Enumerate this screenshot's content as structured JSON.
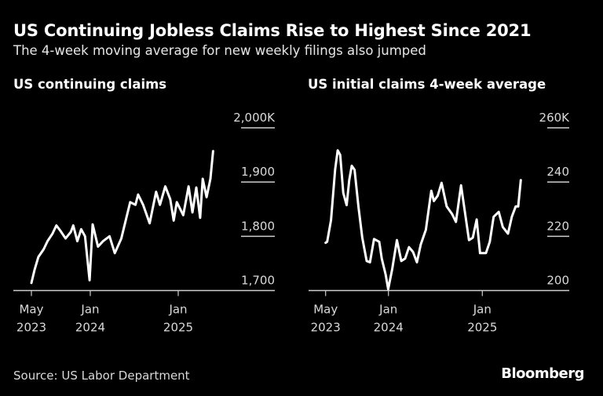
{
  "header": {
    "title": "US Continuing Jobless Claims Rise to Highest Since 2021",
    "subtitle": "The 4-week moving average for new weekly filings also jumped"
  },
  "footer": {
    "source": "Source: US Labor Department",
    "brand": "Bloomberg"
  },
  "colors": {
    "background": "#000000",
    "line": "#ffffff",
    "text": "#d9d9d9"
  },
  "chart_data": [
    {
      "type": "line",
      "title": "US continuing claims",
      "unit": "K",
      "ylim": [
        1700,
        2000
      ],
      "yticks": [
        {
          "v": 2000,
          "label": "2,000K"
        },
        {
          "v": 1900,
          "label": "1,900"
        },
        {
          "v": 1800,
          "label": "1,800"
        },
        {
          "v": 1700,
          "label": "1,700"
        }
      ],
      "xticks": [
        {
          "date": "2023-05-01",
          "label": [
            "May",
            "2023"
          ]
        },
        {
          "date": "2024-01-01",
          "label": [
            "Jan",
            "2024"
          ]
        },
        {
          "date": "2025-01-01",
          "label": [
            "Jan",
            "2025"
          ]
        }
      ],
      "xlim": [
        "2023-04-01",
        "2025-09-15"
      ],
      "grid": false,
      "points": [
        [
          "2023-05-01",
          1714
        ],
        [
          "2023-05-14",
          1738
        ],
        [
          "2023-05-30",
          1762
        ],
        [
          "2023-06-21",
          1776
        ],
        [
          "2023-07-07",
          1791
        ],
        [
          "2023-07-28",
          1805
        ],
        [
          "2023-08-13",
          1820
        ],
        [
          "2023-08-30",
          1810
        ],
        [
          "2023-09-20",
          1796
        ],
        [
          "2023-10-12",
          1808
        ],
        [
          "2023-10-22",
          1820
        ],
        [
          "2023-11-08",
          1791
        ],
        [
          "2023-11-24",
          1813
        ],
        [
          "2023-12-10",
          1800
        ],
        [
          "2023-12-29",
          1719
        ],
        [
          "2024-01-11",
          1822
        ],
        [
          "2024-02-02",
          1781
        ],
        [
          "2024-02-23",
          1791
        ],
        [
          "2024-03-21",
          1800
        ],
        [
          "2024-04-12",
          1769
        ],
        [
          "2024-05-09",
          1796
        ],
        [
          "2024-06-15",
          1863
        ],
        [
          "2024-07-07",
          1858
        ],
        [
          "2024-07-18",
          1877
        ],
        [
          "2024-08-08",
          1858
        ],
        [
          "2024-09-04",
          1824
        ],
        [
          "2024-10-01",
          1882
        ],
        [
          "2024-10-17",
          1858
        ],
        [
          "2024-11-08",
          1892
        ],
        [
          "2024-11-29",
          1868
        ],
        [
          "2024-12-13",
          1829
        ],
        [
          "2024-12-26",
          1863
        ],
        [
          "2025-01-22",
          1839
        ],
        [
          "2025-02-13",
          1892
        ],
        [
          "2025-03-01",
          1844
        ],
        [
          "2025-03-17",
          1890
        ],
        [
          "2025-04-02",
          1834
        ],
        [
          "2025-04-13",
          1906
        ],
        [
          "2025-04-29",
          1872
        ],
        [
          "2025-05-15",
          1906
        ],
        [
          "2025-05-26",
          1957
        ]
      ]
    },
    {
      "type": "line",
      "title": "US initial claims 4-week average",
      "unit": "K",
      "ylim": [
        200,
        260
      ],
      "yticks": [
        {
          "v": 260,
          "label": "260K"
        },
        {
          "v": 240,
          "label": "240"
        },
        {
          "v": 220,
          "label": "220"
        },
        {
          "v": 200,
          "label": "200"
        }
      ],
      "xticks": [
        {
          "date": "2023-05-01",
          "label": [
            "May",
            "2023"
          ]
        },
        {
          "date": "2024-01-01",
          "label": [
            "Jan",
            "2024"
          ]
        },
        {
          "date": "2025-01-01",
          "label": [
            "Jan",
            "2025"
          ]
        }
      ],
      "xlim": [
        "2023-03-15",
        "2025-09-15"
      ],
      "grid": false,
      "points": [
        [
          "2023-05-01",
          217.6
        ],
        [
          "2023-05-07",
          218
        ],
        [
          "2023-05-22",
          226
        ],
        [
          "2023-06-07",
          244.5
        ],
        [
          "2023-06-17",
          251.7
        ],
        [
          "2023-06-27",
          250
        ],
        [
          "2023-07-09",
          236
        ],
        [
          "2023-07-22",
          231.5
        ],
        [
          "2023-08-01",
          240.7
        ],
        [
          "2023-08-11",
          246
        ],
        [
          "2023-08-22",
          244.5
        ],
        [
          "2023-09-06",
          231
        ],
        [
          "2023-09-21",
          219.5
        ],
        [
          "2023-10-08",
          210.9
        ],
        [
          "2023-10-21",
          210.4
        ],
        [
          "2023-11-06",
          219
        ],
        [
          "2023-11-26",
          218
        ],
        [
          "2023-12-06",
          211.8
        ],
        [
          "2023-12-21",
          206
        ],
        [
          "2023-12-31",
          200.5
        ],
        [
          "2024-01-16",
          208
        ],
        [
          "2024-02-03",
          218.6
        ],
        [
          "2024-02-20",
          210.9
        ],
        [
          "2024-03-06",
          211.8
        ],
        [
          "2024-03-21",
          216
        ],
        [
          "2024-04-06",
          214.2
        ],
        [
          "2024-04-21",
          210.4
        ],
        [
          "2024-05-06",
          217
        ],
        [
          "2024-05-26",
          222.4
        ],
        [
          "2024-06-16",
          236.8
        ],
        [
          "2024-06-26",
          233
        ],
        [
          "2024-07-11",
          235
        ],
        [
          "2024-07-26",
          239.7
        ],
        [
          "2024-08-15",
          231
        ],
        [
          "2024-09-05",
          228.2
        ],
        [
          "2024-09-20",
          225.3
        ],
        [
          "2024-10-10",
          238.8
        ],
        [
          "2024-10-25",
          229
        ],
        [
          "2024-11-10",
          218.6
        ],
        [
          "2024-11-25",
          219.5
        ],
        [
          "2024-12-10",
          226.2
        ],
        [
          "2024-12-23",
          213.8
        ],
        [
          "2025-01-15",
          213.8
        ],
        [
          "2025-01-30",
          218
        ],
        [
          "2025-02-14",
          227.2
        ],
        [
          "2025-03-06",
          229
        ],
        [
          "2025-03-22",
          223.4
        ],
        [
          "2025-04-11",
          221
        ],
        [
          "2025-04-26",
          227.2
        ],
        [
          "2025-05-11",
          231
        ],
        [
          "2025-05-21",
          231
        ],
        [
          "2025-05-31",
          240.7
        ]
      ]
    }
  ]
}
